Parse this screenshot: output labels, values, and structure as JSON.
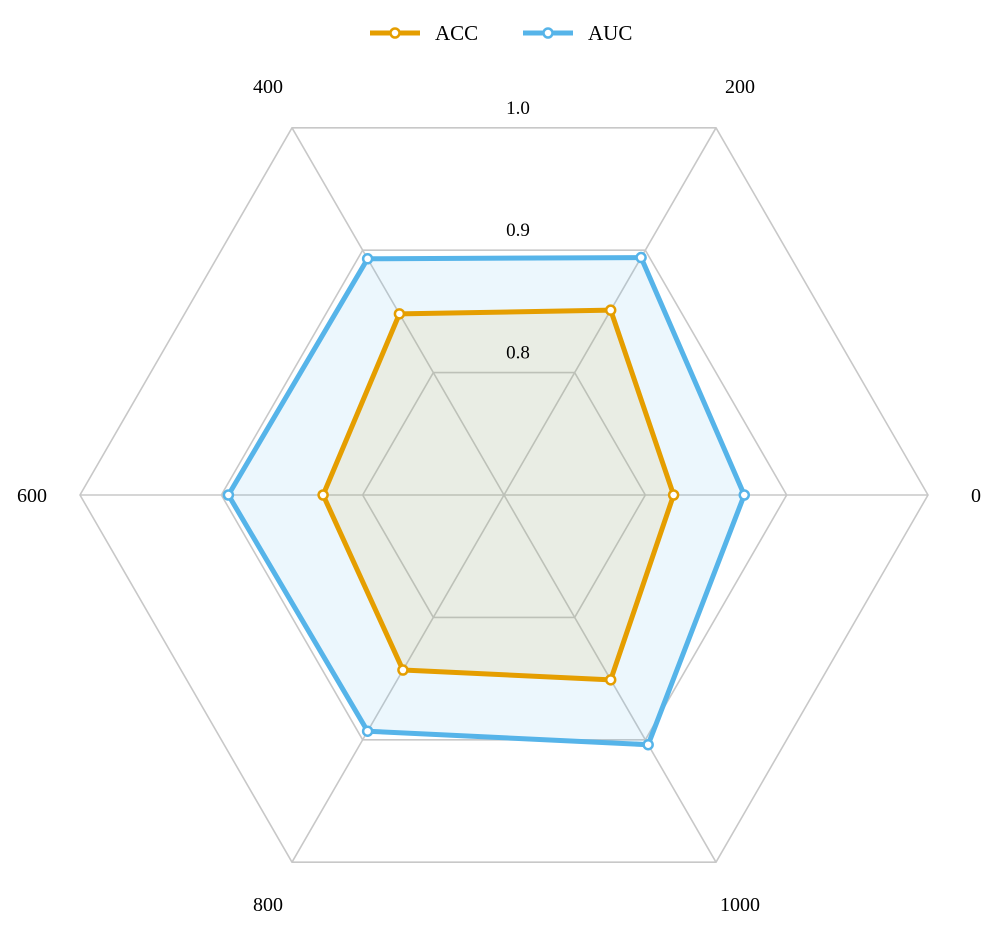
{
  "chart_data": {
    "type": "radar",
    "categories": [
      "0",
      "200",
      "400",
      "600",
      "800",
      "1000"
    ],
    "radial_range": [
      0.7,
      1.0
    ],
    "radial_ticks": [
      "0.8",
      "0.9",
      "1.0"
    ],
    "grid": true,
    "legend_position": "top",
    "series": [
      {
        "name": "ACC",
        "values": [
          0.82,
          0.851,
          0.848,
          0.828,
          0.843,
          0.851
        ]
      },
      {
        "name": "AUC",
        "values": [
          0.87,
          0.894,
          0.893,
          0.895,
          0.893,
          0.904
        ]
      }
    ],
    "colors": {
      "ACC": "#E59E00",
      "AUC": "#56B4E9",
      "grid": "#c8c8c8"
    }
  }
}
